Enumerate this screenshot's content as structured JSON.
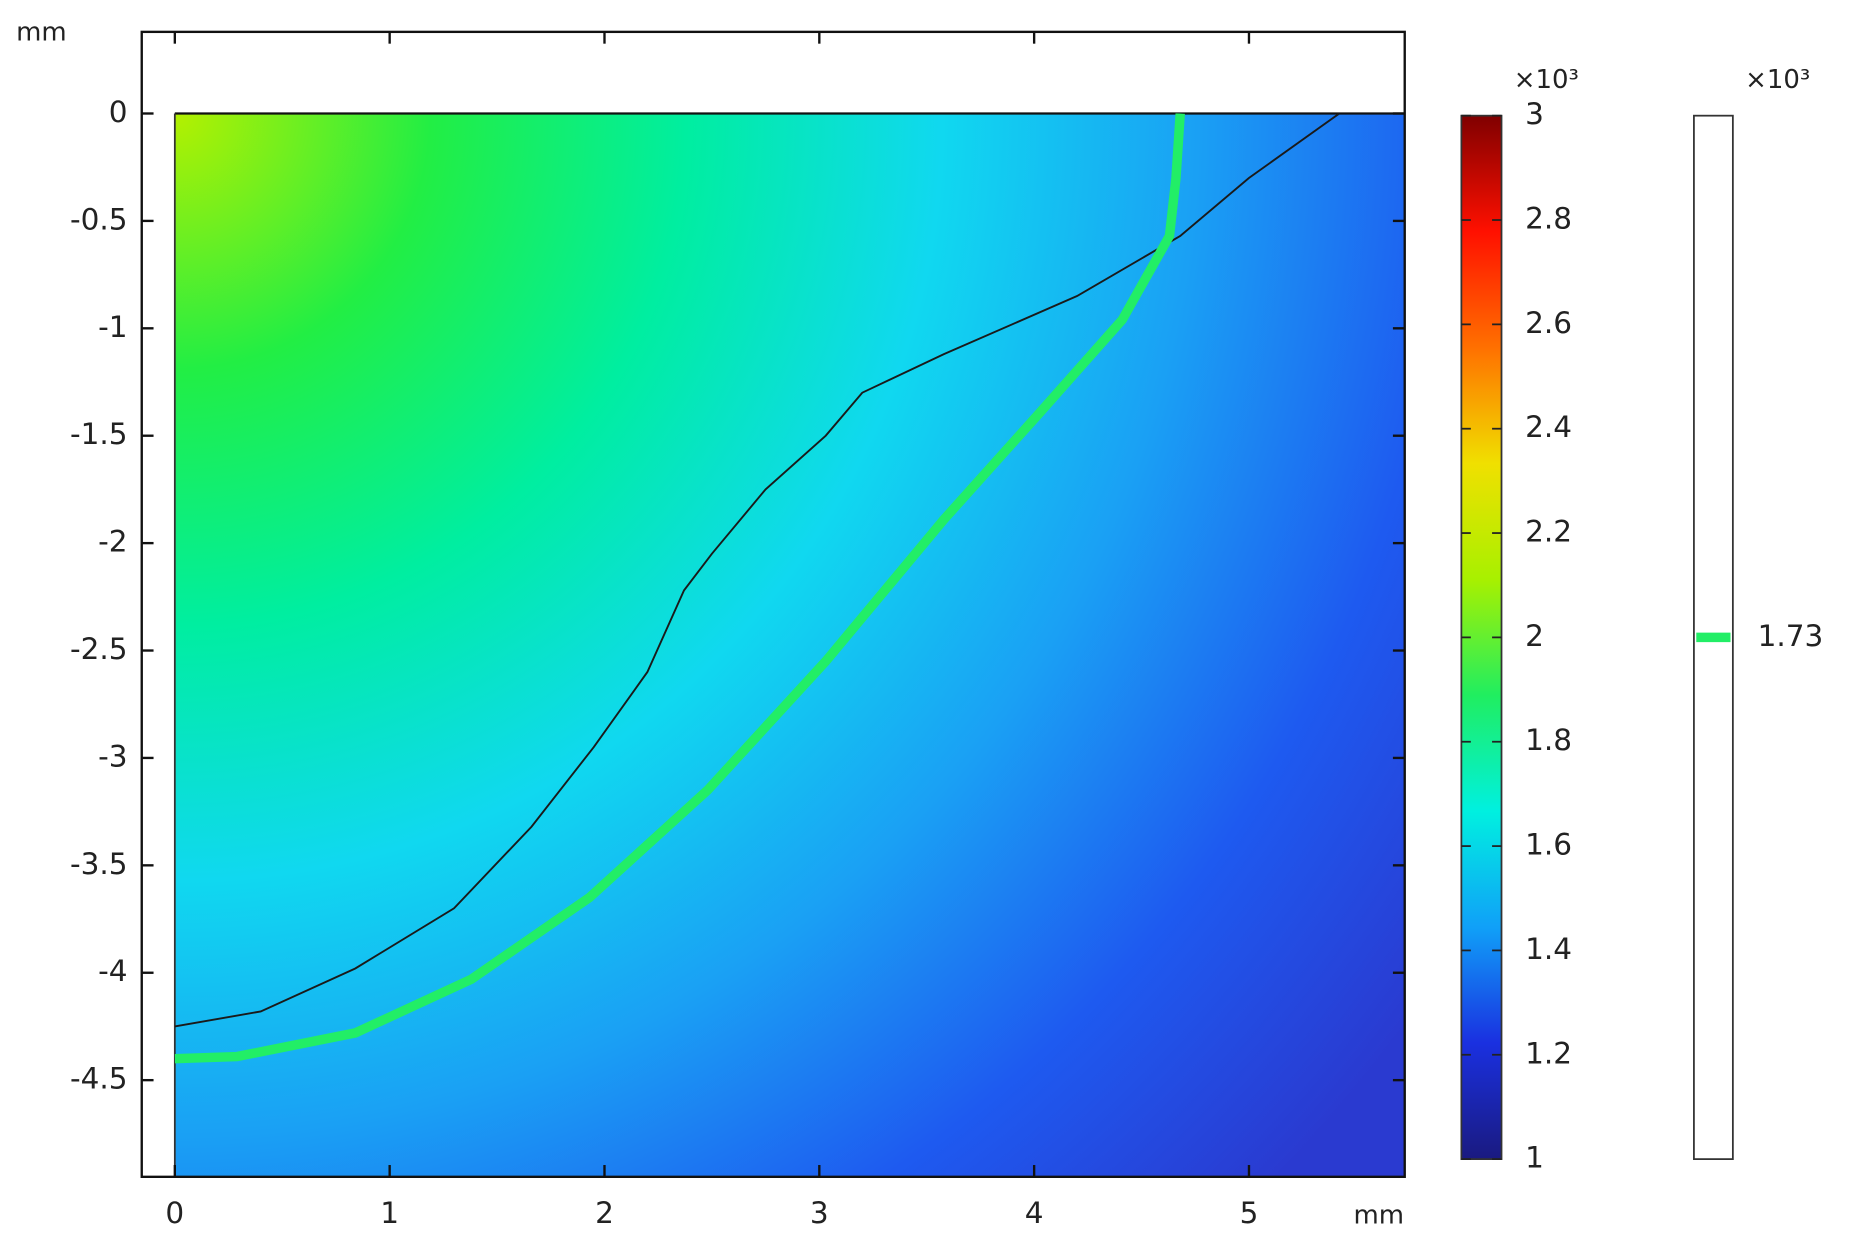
{
  "chart_data": {
    "type": "surface",
    "xlabel": "mm",
    "ylabel": "mm",
    "xlim": [
      -0.154,
      5.725
    ],
    "ylim": [
      -4.95,
      0.38
    ],
    "xticks": [
      0,
      1,
      2,
      3,
      4,
      5
    ],
    "yticks": [
      0,
      -0.5,
      -1,
      -1.5,
      -2,
      -2.5,
      -3,
      -3.5,
      -4,
      -4.5
    ],
    "domain_x": [
      0,
      5.725
    ],
    "domain_y": [
      -4.95,
      0
    ],
    "field_colors": [
      "#b4f000",
      "#22ee44",
      "#00eea0",
      "#10d8f0",
      "#1aa0f4",
      "#1e5af0",
      "#2a3ad0"
    ],
    "series": [
      {
        "color": "#1a1a1a",
        "x": [
          5.42,
          5.0,
          4.68,
          4.2,
          3.58,
          3.2,
          3.03,
          2.75,
          2.5,
          2.37,
          2.2,
          1.95,
          1.66,
          1.3,
          0.84,
          0.4,
          0
        ],
        "y": [
          0,
          -0.3,
          -0.57,
          -0.85,
          -1.12,
          -1.3,
          -1.5,
          -1.75,
          -2.05,
          -2.22,
          -2.6,
          -2.95,
          -3.32,
          -3.7,
          -3.98,
          -4.18,
          -4.25
        ]
      },
      {
        "color": "#22ee66",
        "x": [
          4.68,
          4.66,
          4.63,
          4.41,
          4.02,
          3.58,
          3.03,
          2.48,
          1.93,
          1.38,
          0.84,
          0.29,
          0
        ],
        "y": [
          0,
          -0.3,
          -0.57,
          -0.96,
          -1.4,
          -1.89,
          -2.55,
          -3.15,
          -3.65,
          -4.03,
          -4.28,
          -4.39,
          -4.4
        ]
      }
    ],
    "colorbar": {
      "multiplier": "×10³",
      "clim": [
        1,
        3
      ],
      "ticks": [
        1,
        1.2,
        1.4,
        1.6,
        1.8,
        2,
        2.2,
        2.4,
        2.6,
        2.8,
        3
      ],
      "colors": [
        "#1a1a80",
        "#1a30e0",
        "#10a0f8",
        "#00f0e0",
        "#20ee60",
        "#a8f000",
        "#f0e000",
        "#ff7000",
        "#ff1000",
        "#800000"
      ]
    },
    "contour_legend": {
      "multiplier": "×10³",
      "levels": [
        1.73
      ],
      "color": "#22ee66"
    }
  }
}
